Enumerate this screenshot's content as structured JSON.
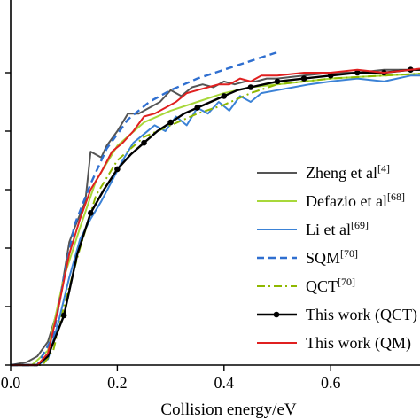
{
  "chart_data": {
    "type": "line",
    "title": "",
    "xlabel": "Collision energy/eV",
    "ylabel": "",
    "xlim": [
      0.0,
      0.8
    ],
    "ylim": [
      0.0,
      1.05
    ],
    "x_ticks": [
      0.0,
      0.2,
      0.4,
      0.6
    ],
    "x_tick_labels": [
      "0.0",
      "0.2",
      "0.4",
      "0.6"
    ],
    "y_ticks": [
      0.0,
      0.2,
      0.4,
      0.6,
      0.8,
      1.0
    ],
    "grid": false,
    "legend_position": "right",
    "series": [
      {
        "name": "Zheng et al",
        "ref": "[4]",
        "color": "#555555",
        "style": "solid",
        "x": [
          0.0,
          0.03,
          0.05,
          0.07,
          0.09,
          0.11,
          0.12,
          0.14,
          0.15,
          0.17,
          0.18,
          0.2,
          0.21,
          0.22,
          0.24,
          0.26,
          0.28,
          0.3,
          0.32,
          0.34,
          0.36,
          0.38,
          0.4,
          0.42,
          0.44,
          0.46,
          0.48,
          0.5,
          0.55,
          0.6,
          0.65,
          0.7,
          0.75,
          0.8
        ],
        "y": [
          0.0,
          0.01,
          0.03,
          0.08,
          0.2,
          0.42,
          0.47,
          0.56,
          0.73,
          0.71,
          0.75,
          0.8,
          0.83,
          0.86,
          0.86,
          0.88,
          0.9,
          0.94,
          0.92,
          0.95,
          0.96,
          0.95,
          0.97,
          0.96,
          0.97,
          0.97,
          0.98,
          0.98,
          0.99,
          1.0,
          1.0,
          1.01,
          1.01,
          1.01
        ]
      },
      {
        "name": "Defazio et al",
        "ref": "[68]",
        "color": "#a8d83a",
        "style": "solid",
        "x": [
          0.0,
          0.04,
          0.07,
          0.1,
          0.13,
          0.16,
          0.2,
          0.25,
          0.3,
          0.35,
          0.4,
          0.45,
          0.5,
          0.6,
          0.7,
          0.8
        ],
        "y": [
          0.0,
          0.0,
          0.05,
          0.3,
          0.47,
          0.63,
          0.75,
          0.83,
          0.87,
          0.9,
          0.93,
          0.95,
          0.96,
          0.98,
          0.99,
          1.0
        ]
      },
      {
        "name": "Li et al",
        "ref": "[69]",
        "color": "#3b82d6",
        "style": "solid",
        "x": [
          0.0,
          0.05,
          0.07,
          0.09,
          0.11,
          0.13,
          0.15,
          0.17,
          0.19,
          0.21,
          0.23,
          0.25,
          0.27,
          0.29,
          0.31,
          0.33,
          0.35,
          0.37,
          0.39,
          0.41,
          0.43,
          0.45,
          0.47,
          0.5,
          0.53,
          0.56,
          0.6,
          0.65,
          0.7,
          0.75,
          0.8
        ],
        "y": [
          0.0,
          0.0,
          0.02,
          0.15,
          0.3,
          0.43,
          0.5,
          0.56,
          0.63,
          0.7,
          0.76,
          0.79,
          0.82,
          0.8,
          0.85,
          0.82,
          0.88,
          0.86,
          0.9,
          0.87,
          0.92,
          0.9,
          0.93,
          0.94,
          0.95,
          0.96,
          0.97,
          0.98,
          0.97,
          0.99,
          0.99
        ]
      },
      {
        "name": "SQM",
        "ref": "[70]",
        "color": "#2f6fd0",
        "style": "dashed",
        "x": [
          0.0,
          0.05,
          0.08,
          0.1,
          0.12,
          0.15,
          0.18,
          0.22,
          0.26,
          0.3,
          0.35,
          0.4,
          0.45,
          0.5
        ],
        "y": [
          0.0,
          0.0,
          0.1,
          0.3,
          0.48,
          0.62,
          0.74,
          0.84,
          0.9,
          0.94,
          0.98,
          1.01,
          1.04,
          1.07
        ]
      },
      {
        "name": "QCT",
        "ref": "[70]",
        "color": "#8fb800",
        "style": "dashdot",
        "x": [
          0.0,
          0.06,
          0.08,
          0.1,
          0.13,
          0.16,
          0.2,
          0.25,
          0.3,
          0.35,
          0.4,
          0.45,
          0.5,
          0.6,
          0.7,
          0.8
        ],
        "y": [
          0.0,
          0.0,
          0.05,
          0.2,
          0.4,
          0.58,
          0.7,
          0.78,
          0.82,
          0.86,
          0.89,
          0.93,
          0.96,
          0.98,
          0.99,
          1.0
        ]
      },
      {
        "name": "This work (QCT)",
        "color": "#000000",
        "style": "solid-markers",
        "x": [
          0.0,
          0.05,
          0.07,
          0.1,
          0.125,
          0.15,
          0.175,
          0.2,
          0.225,
          0.25,
          0.275,
          0.3,
          0.325,
          0.35,
          0.375,
          0.4,
          0.425,
          0.45,
          0.475,
          0.5,
          0.55,
          0.6,
          0.65,
          0.7,
          0.75,
          0.8
        ],
        "y": [
          0.0,
          0.0,
          0.03,
          0.17,
          0.38,
          0.52,
          0.6,
          0.67,
          0.72,
          0.76,
          0.8,
          0.83,
          0.86,
          0.88,
          0.9,
          0.92,
          0.94,
          0.95,
          0.96,
          0.97,
          0.98,
          0.99,
          1.0,
          1.0,
          1.01,
          1.01
        ]
      },
      {
        "name": "This work (QM)",
        "color": "#e02020",
        "style": "solid",
        "x": [
          0.0,
          0.05,
          0.07,
          0.09,
          0.11,
          0.13,
          0.15,
          0.17,
          0.19,
          0.21,
          0.23,
          0.25,
          0.27,
          0.29,
          0.31,
          0.33,
          0.35,
          0.37,
          0.39,
          0.41,
          0.43,
          0.45,
          0.47,
          0.5,
          0.55,
          0.6,
          0.65,
          0.7,
          0.75,
          0.8
        ],
        "y": [
          0.0,
          0.0,
          0.04,
          0.2,
          0.38,
          0.5,
          0.6,
          0.66,
          0.73,
          0.76,
          0.8,
          0.85,
          0.86,
          0.88,
          0.9,
          0.93,
          0.94,
          0.95,
          0.96,
          0.96,
          0.98,
          0.97,
          0.99,
          0.99,
          1.0,
          1.0,
          1.01,
          1.0,
          1.01,
          1.02
        ]
      }
    ]
  }
}
